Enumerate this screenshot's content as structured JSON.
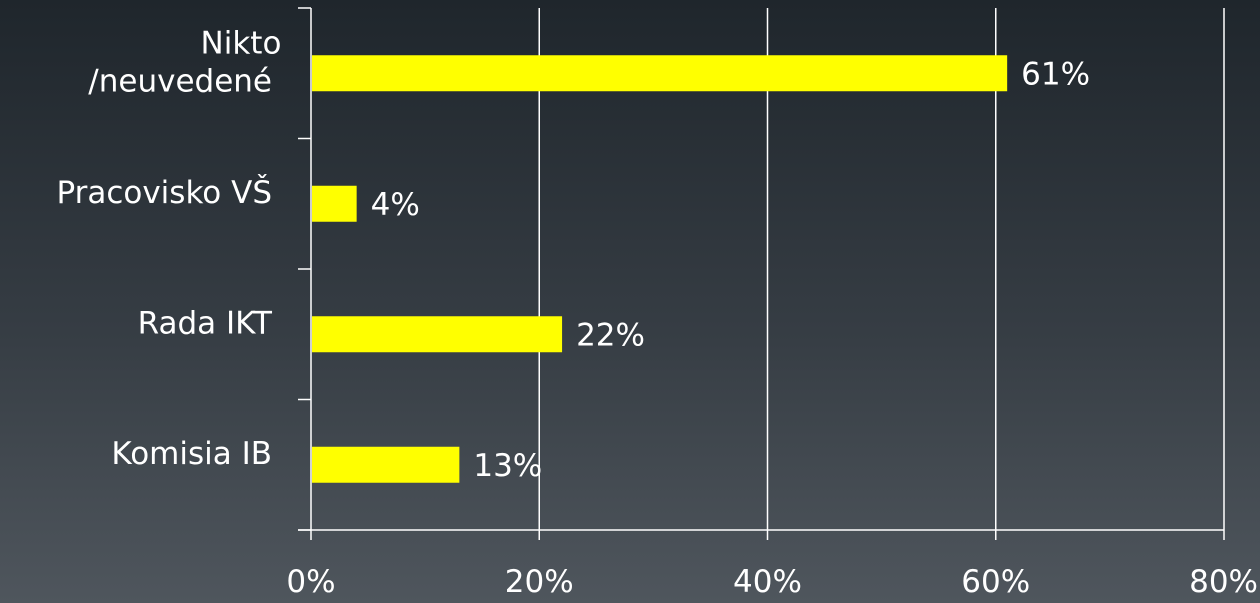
{
  "chart_data": {
    "type": "bar",
    "orientation": "horizontal",
    "categories": [
      [
        "Nikto",
        "/neuvedené"
      ],
      [
        "Pracovisko VŠ"
      ],
      [
        "Rada IKT"
      ],
      [
        "Komisia IB"
      ]
    ],
    "values": [
      61,
      4,
      22,
      13
    ],
    "value_labels": [
      "61%",
      "4%",
      "22%",
      "13%"
    ],
    "xlim": [
      0,
      80
    ],
    "x_ticks": [
      0,
      20,
      40,
      60,
      80
    ],
    "x_tick_labels": [
      "0%",
      "20%",
      "40%",
      "60%",
      "80%"
    ],
    "grid": true,
    "legend": "none",
    "title": "",
    "xlabel": "",
    "ylabel": "",
    "colors": {
      "bar": "#ffff00",
      "text": "#ffffff",
      "grid": "#ffffff",
      "axis": "#ffffff"
    }
  }
}
